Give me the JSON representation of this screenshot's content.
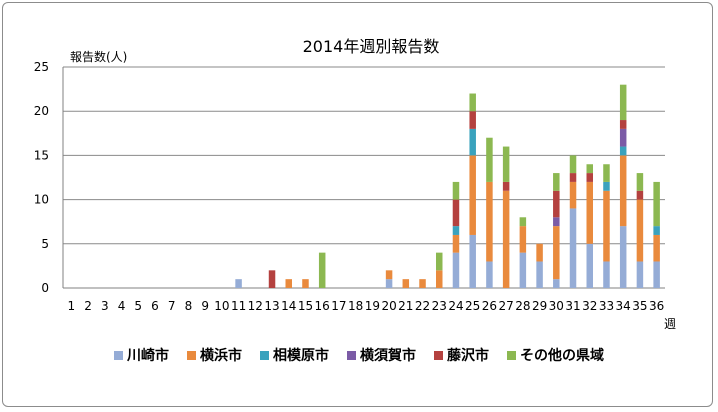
{
  "chart_data": {
    "type": "bar",
    "stacked": true,
    "title": "2014年週別報告数",
    "ylabel": "報告数(人)",
    "xlabel": "週",
    "ylim": [
      0,
      25
    ],
    "yticks": [
      0,
      5,
      10,
      15,
      20,
      25
    ],
    "grid": true,
    "legend_position": "bottom",
    "categories": [
      "1",
      "2",
      "3",
      "4",
      "5",
      "6",
      "7",
      "8",
      "9",
      "10",
      "11",
      "12",
      "13",
      "14",
      "15",
      "16",
      "17",
      "18",
      "19",
      "20",
      "21",
      "22",
      "23",
      "24",
      "25",
      "26",
      "27",
      "28",
      "29",
      "30",
      "31",
      "32",
      "33",
      "34",
      "35",
      "36"
    ],
    "series": [
      {
        "name": "川崎市",
        "color": "#95acd6",
        "values": [
          0,
          0,
          0,
          0,
          0,
          0,
          0,
          0,
          0,
          0,
          1,
          0,
          0,
          0,
          0,
          0,
          0,
          0,
          0,
          1,
          0,
          0,
          0,
          4,
          6,
          3,
          0,
          4,
          3,
          1,
          9,
          5,
          3,
          7,
          3,
          3
        ]
      },
      {
        "name": "横浜市",
        "color": "#e98a3d",
        "values": [
          0,
          0,
          0,
          0,
          0,
          0,
          0,
          0,
          0,
          0,
          0,
          0,
          0,
          1,
          1,
          0,
          0,
          0,
          0,
          1,
          1,
          1,
          2,
          2,
          9,
          9,
          11,
          3,
          2,
          6,
          3,
          7,
          8,
          8,
          7,
          3
        ]
      },
      {
        "name": "相模原市",
        "color": "#3aa2bd",
        "values": [
          0,
          0,
          0,
          0,
          0,
          0,
          0,
          0,
          0,
          0,
          0,
          0,
          0,
          0,
          0,
          0,
          0,
          0,
          0,
          0,
          0,
          0,
          0,
          1,
          3,
          0,
          0,
          0,
          0,
          0,
          0,
          0,
          1,
          1,
          0,
          1
        ]
      },
      {
        "name": "横須賀市",
        "color": "#7b5ba6",
        "values": [
          0,
          0,
          0,
          0,
          0,
          0,
          0,
          0,
          0,
          0,
          0,
          0,
          0,
          0,
          0,
          0,
          0,
          0,
          0,
          0,
          0,
          0,
          0,
          0,
          0,
          0,
          0,
          0,
          0,
          1,
          0,
          0,
          0,
          2,
          0,
          0
        ]
      },
      {
        "name": "藤沢市",
        "color": "#b4413f",
        "values": [
          0,
          0,
          0,
          0,
          0,
          0,
          0,
          0,
          0,
          0,
          0,
          0,
          2,
          0,
          0,
          0,
          0,
          0,
          0,
          0,
          0,
          0,
          0,
          3,
          2,
          0,
          1,
          0,
          0,
          3,
          1,
          1,
          0,
          1,
          1,
          0
        ]
      },
      {
        "name": "その他の県域",
        "color": "#8cb851",
        "values": [
          0,
          0,
          0,
          0,
          0,
          0,
          0,
          0,
          0,
          0,
          0,
          0,
          0,
          0,
          0,
          4,
          0,
          0,
          0,
          0,
          0,
          0,
          2,
          2,
          2,
          5,
          4,
          1,
          0,
          2,
          2,
          1,
          2,
          4,
          2,
          5
        ]
      }
    ]
  }
}
